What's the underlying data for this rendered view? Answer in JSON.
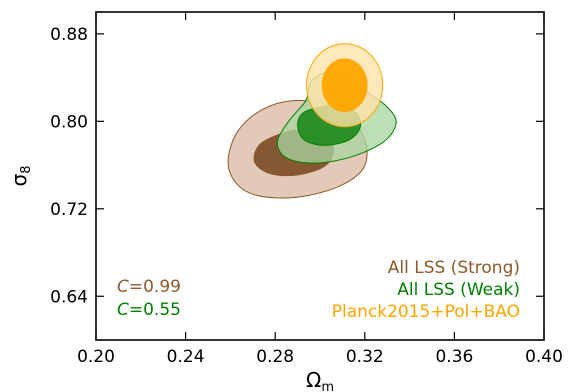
{
  "chart_data": {
    "type": "contour",
    "title": "",
    "xlabel": {
      "main": "Ω",
      "sub": "m"
    },
    "ylabel": {
      "main": "σ",
      "sub": "8"
    },
    "xlim": [
      0.2,
      0.4
    ],
    "ylim": [
      0.6,
      0.9
    ],
    "xticks": [
      0.2,
      0.24,
      0.28,
      0.32,
      0.36,
      0.4
    ],
    "xtick_labels": [
      "0.20",
      "0.24",
      "0.28",
      "0.32",
      "0.36",
      "0.40"
    ],
    "yticks": [
      0.64,
      0.72,
      0.8,
      0.88
    ],
    "ytick_labels": [
      "0.64",
      "0.72",
      "0.80",
      "0.88"
    ],
    "grid": false,
    "legend_position": "bottom-right",
    "series": [
      {
        "name": "All LSS (Strong)",
        "color": "#8B5A2B",
        "outer_fill": "#D9B8A0",
        "inner_fill": "#7B4A25",
        "outer_contour": [
          [
            0.263,
            0.79
          ],
          [
            0.272,
            0.808
          ],
          [
            0.284,
            0.818
          ],
          [
            0.298,
            0.818
          ],
          [
            0.31,
            0.81
          ],
          [
            0.318,
            0.792
          ],
          [
            0.321,
            0.774
          ],
          [
            0.319,
            0.756
          ],
          [
            0.309,
            0.741
          ],
          [
            0.294,
            0.732
          ],
          [
            0.28,
            0.73
          ],
          [
            0.268,
            0.735
          ],
          [
            0.261,
            0.748
          ],
          [
            0.259,
            0.766
          ]
        ],
        "inner_contour": [
          [
            0.278,
            0.785
          ],
          [
            0.29,
            0.792
          ],
          [
            0.301,
            0.788
          ],
          [
            0.306,
            0.774
          ],
          [
            0.302,
            0.759
          ],
          [
            0.29,
            0.751
          ],
          [
            0.278,
            0.752
          ],
          [
            0.271,
            0.762
          ],
          [
            0.272,
            0.776
          ]
        ]
      },
      {
        "name": "All LSS (Weak)",
        "color": "#008000",
        "outer_fill": "#A8D5A0",
        "inner_fill": "#1E8A1E",
        "outer_contour": [
          [
            0.294,
            0.82
          ],
          [
            0.296,
            0.836
          ],
          [
            0.303,
            0.845
          ],
          [
            0.312,
            0.84
          ],
          [
            0.32,
            0.828
          ],
          [
            0.329,
            0.815
          ],
          [
            0.334,
            0.8
          ],
          [
            0.33,
            0.784
          ],
          [
            0.32,
            0.772
          ],
          [
            0.307,
            0.764
          ],
          [
            0.294,
            0.762
          ],
          [
            0.284,
            0.768
          ],
          [
            0.281,
            0.782
          ],
          [
            0.286,
            0.8
          ],
          [
            0.291,
            0.812
          ]
        ],
        "inner_contour": [
          [
            0.298,
            0.812
          ],
          [
            0.309,
            0.815
          ],
          [
            0.316,
            0.808
          ],
          [
            0.318,
            0.795
          ],
          [
            0.313,
            0.783
          ],
          [
            0.302,
            0.778
          ],
          [
            0.293,
            0.783
          ],
          [
            0.29,
            0.796
          ],
          [
            0.292,
            0.807
          ]
        ]
      },
      {
        "name": "Planck2015+Pol+BAO",
        "color": "#FFA500",
        "outer_fill": "#FFE2A8",
        "inner_fill": "#FFA500",
        "center": [
          0.311,
          0.833
        ],
        "outer_radius": [
          0.017,
          0.038
        ],
        "inner_radius": [
          0.01,
          0.024
        ]
      }
    ],
    "annotations": [
      {
        "label": "C=0.99",
        "prefix": "C",
        "value": "=0.99",
        "color": "#8B5A2B"
      },
      {
        "label": "C=0.55",
        "prefix": "C",
        "value": "=0.55",
        "color": "#008000"
      }
    ]
  }
}
